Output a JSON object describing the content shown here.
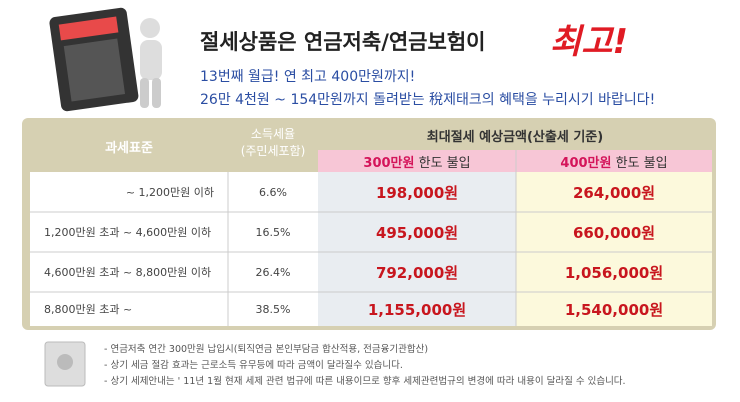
{
  "header": {
    "title": "절세상품은 연금저축/연금보험이",
    "title_emphasis": "최고!",
    "lines": [
      "13번째 월급! 연 최고 400만원까지!",
      "26만 4천원 ~ 154만원까지 돌려받는 稅제태크의 혜택을 누리시기 바랍니다!"
    ]
  },
  "table": {
    "head": {
      "tax_base": "과세표준",
      "rate": [
        "소득세율",
        "(주민세포함)"
      ],
      "group": "최대절세 예상금액(산출세 기준)",
      "limits": [
        {
          "amount": "300만원",
          "label": "한도 불입"
        },
        {
          "amount": "400만원",
          "label": "한도 불입"
        }
      ]
    },
    "rows": [
      [
        "~ 1,200만원 이하",
        "6.6%",
        "198,000원",
        "264,000원"
      ],
      [
        "1,200만원 초과 ~ 4,600만원 이하",
        "16.5%",
        "495,000원",
        "660,000원"
      ],
      [
        "4,600만원 초과 ~ 8,800만원 이하",
        "26.4%",
        "792,000원",
        "1,056,000원"
      ],
      [
        "8,800만원 초과 ~",
        "38.5%",
        "1,155,000원",
        "1,540,000원"
      ]
    ]
  },
  "notes": [
    "- 연금저축 연간 300만원 납입시(퇴직연금 본인부담금 합산적용, 전금융기관합산)",
    "- 상기 세금 절감 효과는 근로소득 유무등에 따라 금액이 달라질수 있습니다.",
    "- 상기 세제안내는 ' 11년 1월 현재 세제 관련 법규에 따른 내용이므로 향후 세제관련법규의 변경에 따라 내용이 달라질 수 있습니다."
  ]
}
